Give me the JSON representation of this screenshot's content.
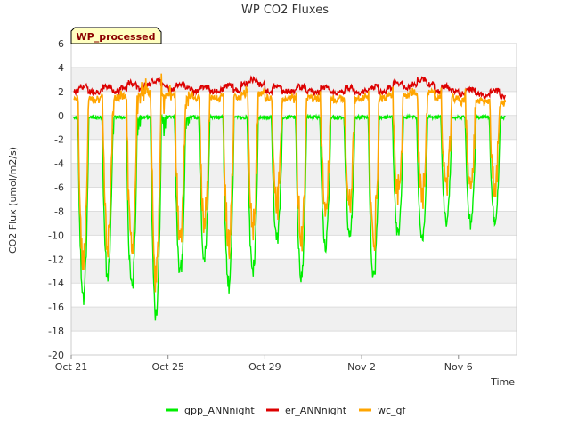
{
  "chart_data": {
    "type": "line",
    "title": "WP CO2 Fluxes",
    "xlabel": "Time",
    "ylabel": "CO2 Flux (umol/m2/s)",
    "ylim": [
      -20,
      6
    ],
    "xlim": [
      0,
      18.4
    ],
    "yticks": [
      6,
      4,
      2,
      0,
      -2,
      -4,
      -6,
      -8,
      -10,
      -12,
      -14,
      -16,
      -18,
      -20
    ],
    "xticks": [
      {
        "pos": 0,
        "label": "Oct 21"
      },
      {
        "pos": 4,
        "label": "Oct 25"
      },
      {
        "pos": 8,
        "label": "Oct 29"
      },
      {
        "pos": 12,
        "label": "Nov 2"
      },
      {
        "pos": 16,
        "label": "Nov 6"
      }
    ],
    "badge": "WP_processed",
    "colors": {
      "gpp": "#00ee00",
      "er": "#dd0000",
      "wc": "#ffa500",
      "band": "#f0f0f0",
      "badge_bg": "#ffffc0",
      "badge_text": "#8b0000"
    },
    "days": [
      {
        "start": 0.25,
        "min_gpp": -16.0,
        "er": 2.0
      },
      {
        "start": 1.25,
        "min_gpp": -14.0,
        "er": 2.0
      },
      {
        "start": 2.25,
        "min_gpp": -15.5,
        "er": 2.3
      },
      {
        "start": 3.25,
        "min_gpp": -18.0,
        "er": 2.5
      },
      {
        "start": 4.25,
        "min_gpp": -14.0,
        "er": 2.2
      },
      {
        "start": 5.25,
        "min_gpp": -12.5,
        "er": 2.0
      },
      {
        "start": 6.25,
        "min_gpp": -15.0,
        "er": 2.1
      },
      {
        "start": 7.25,
        "min_gpp": -14.0,
        "er": 2.6
      },
      {
        "start": 8.25,
        "min_gpp": -11.0,
        "er": 2.0
      },
      {
        "start": 9.25,
        "min_gpp": -14.5,
        "er": 2.0
      },
      {
        "start": 10.25,
        "min_gpp": -11.5,
        "er": 1.9
      },
      {
        "start": 11.25,
        "min_gpp": -10.5,
        "er": 1.9
      },
      {
        "start": 12.25,
        "min_gpp": -14.3,
        "er": 2.0
      },
      {
        "start": 13.25,
        "min_gpp": -10.5,
        "er": 2.3
      },
      {
        "start": 14.25,
        "min_gpp": -11.0,
        "er": 2.6
      },
      {
        "start": 15.25,
        "min_gpp": -9.5,
        "er": 2.0
      },
      {
        "start": 16.25,
        "min_gpp": -9.5,
        "er": 1.8
      },
      {
        "start": 17.25,
        "min_gpp": -9.3,
        "er": 1.6
      }
    ],
    "series": [
      {
        "key": "gpp",
        "name": "gpp_ANNnight"
      },
      {
        "key": "er",
        "name": "er_ANNnight"
      },
      {
        "key": "wc",
        "name": "wc_gf"
      }
    ]
  }
}
